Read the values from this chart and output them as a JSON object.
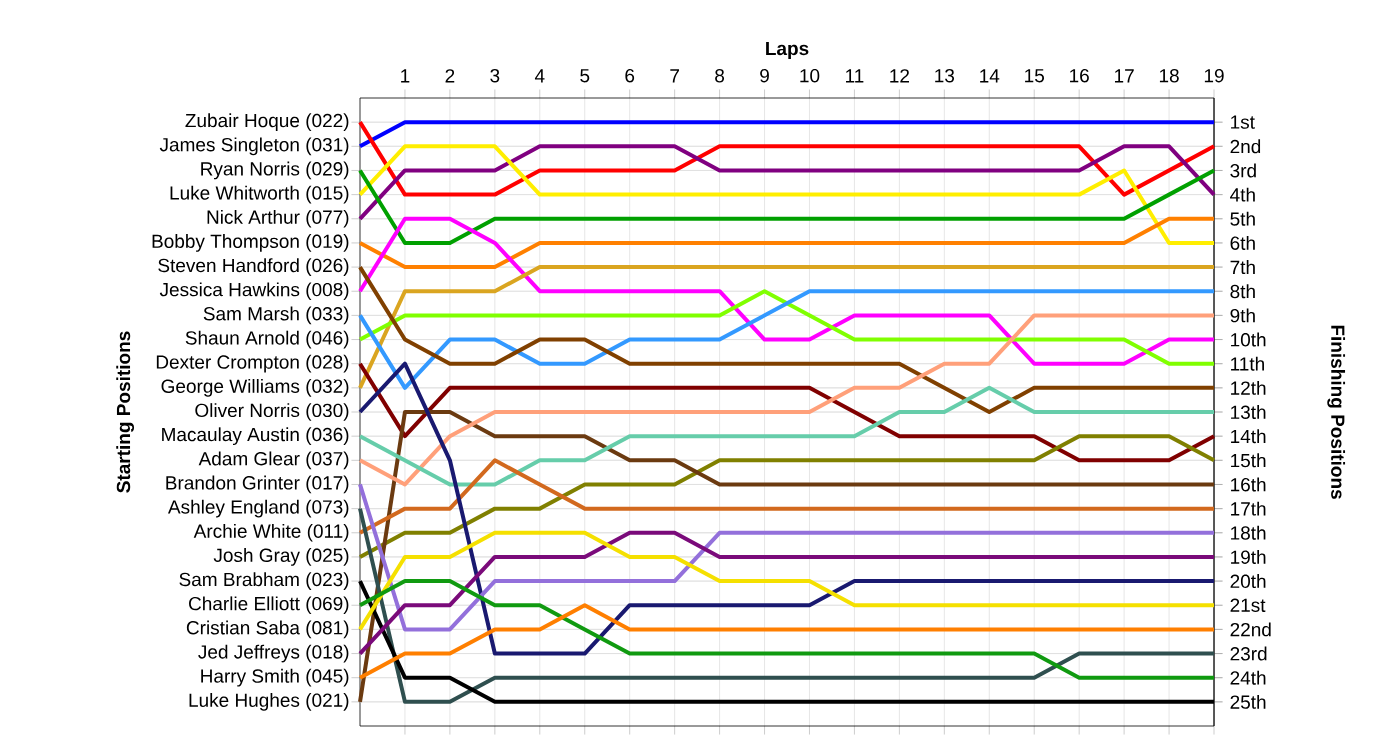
{
  "chart_data": {
    "type": "line",
    "xlabel": "Laps",
    "y2label": "Finishing Positions",
    "grid": true,
    "xlim": [
      0,
      19
    ],
    "xticks": [
      1,
      2,
      3,
      4,
      5,
      6,
      7,
      8,
      9,
      10,
      11,
      12,
      13,
      14,
      15,
      16,
      17,
      18,
      19
    ],
    "annotations": [
      "Starting Positions",
      "Zubair Hoque (022)",
      "James Singleton (031)",
      "Ryan Norris (029)",
      "Luke Whitworth (015)",
      "Nick Arthur (077)",
      "Bobby Thompson (019)",
      "Steven Handford (026)",
      "Jessica Hawkins (008)",
      "Sam Marsh (033)",
      "Shaun Arnold (046)",
      "Dexter Crompton (028)",
      "George Williams (032)",
      "Oliver Norris (030)",
      "Macaulay Austin (036)",
      "Adam Glear (037)",
      "Brandon Grinter (017)",
      "Ashley England (073)",
      "Archie White (011)",
      "Josh Gray (025)",
      "Sam Brabham (023)",
      "Charlie Elliott (069)",
      "Cristian Saba (081)",
      "Jed Jeffreys (018)",
      "Harry Smith (045)",
      "Luke Hughes (021)"
    ],
    "y2lim": [
      26,
      0
    ],
    "y2ticks": [
      {
        "value": 1,
        "label": "1st"
      },
      {
        "value": 2,
        "label": "2nd"
      },
      {
        "value": 3,
        "label": "3rd"
      },
      {
        "value": 4,
        "label": "4th"
      },
      {
        "value": 5,
        "label": "5th"
      },
      {
        "value": 6,
        "label": "6th"
      },
      {
        "value": 7,
        "label": "7th"
      },
      {
        "value": 8,
        "label": "8th"
      },
      {
        "value": 9,
        "label": "9th"
      },
      {
        "value": 10,
        "label": "10th"
      },
      {
        "value": 11,
        "label": "11th"
      },
      {
        "value": 12,
        "label": "12th"
      },
      {
        "value": 13,
        "label": "13th"
      },
      {
        "value": 14,
        "label": "14th"
      },
      {
        "value": 15,
        "label": "15th"
      },
      {
        "value": 16,
        "label": "16th"
      },
      {
        "value": 17,
        "label": "17th"
      },
      {
        "value": 18,
        "label": "18th"
      },
      {
        "value": 19,
        "label": "19th"
      },
      {
        "value": 20,
        "label": "20th"
      },
      {
        "value": 21,
        "label": "21st"
      },
      {
        "value": 22,
        "label": "22nd"
      },
      {
        "value": 23,
        "label": "23rd"
      },
      {
        "value": 24,
        "label": "24th"
      },
      {
        "value": 25,
        "label": "25th"
      }
    ],
    "x": [
      0,
      1,
      2,
      3,
      4,
      5,
      6,
      7,
      8,
      9,
      10,
      11,
      12,
      13,
      14,
      15,
      16,
      17,
      18,
      19
    ],
    "series": [
      {
        "axis": "y2",
        "color": "#0000ff",
        "values": [
          2,
          1,
          1,
          1,
          1,
          1,
          1,
          1,
          1,
          1,
          1,
          1,
          1,
          1,
          1,
          1,
          1,
          1,
          1,
          1
        ]
      },
      {
        "axis": "y2",
        "color": "#ff0000",
        "values": [
          1,
          4,
          4,
          4,
          3,
          3,
          3,
          3,
          2,
          2,
          2,
          2,
          2,
          2,
          2,
          2,
          2,
          4,
          3,
          2
        ]
      },
      {
        "axis": "y2",
        "color": "#800080",
        "values": [
          5,
          3,
          3,
          3,
          2,
          2,
          2,
          2,
          3,
          3,
          3,
          3,
          3,
          3,
          3,
          3,
          3,
          2,
          2,
          4
        ]
      },
      {
        "axis": "y2",
        "color": "#ffee00",
        "values": [
          4,
          2,
          2,
          2,
          4,
          4,
          4,
          4,
          4,
          4,
          4,
          4,
          4,
          4,
          4,
          4,
          4,
          3,
          6,
          6
        ]
      },
      {
        "axis": "y2",
        "color": "#00a000",
        "values": [
          3,
          6,
          6,
          5,
          5,
          5,
          5,
          5,
          5,
          5,
          5,
          5,
          5,
          5,
          5,
          5,
          5,
          5,
          4,
          3
        ]
      },
      {
        "axis": "y2",
        "color": "#ff8000",
        "values": [
          6,
          7,
          7,
          7,
          6,
          6,
          6,
          6,
          6,
          6,
          6,
          6,
          6,
          6,
          6,
          6,
          6,
          6,
          5,
          5
        ]
      },
      {
        "axis": "y2",
        "color": "#ff00ff",
        "values": [
          8,
          5,
          5,
          6,
          8,
          8,
          8,
          8,
          8,
          10,
          10,
          9,
          9,
          9,
          9,
          11,
          11,
          11,
          10,
          10
        ]
      },
      {
        "axis": "y2",
        "color": "#daa520",
        "values": [
          12,
          8,
          8,
          8,
          7,
          7,
          7,
          7,
          7,
          7,
          7,
          7,
          7,
          7,
          7,
          7,
          7,
          7,
          7,
          7
        ]
      },
      {
        "axis": "y2",
        "color": "#80ff00",
        "values": [
          10,
          9,
          9,
          9,
          9,
          9,
          9,
          9,
          9,
          8,
          9,
          10,
          10,
          10,
          10,
          10,
          10,
          10,
          11,
          11
        ]
      },
      {
        "axis": "y2",
        "color": "#3399ff",
        "values": [
          9,
          12,
          10,
          10,
          11,
          11,
          10,
          10,
          10,
          9,
          8,
          8,
          8,
          8,
          8,
          8,
          8,
          8,
          8,
          8
        ]
      },
      {
        "axis": "y2",
        "color": "#804000",
        "values": [
          7,
          10,
          11,
          11,
          10,
          10,
          11,
          11,
          11,
          11,
          11,
          11,
          11,
          12,
          13,
          12,
          12,
          12,
          12,
          12
        ]
      },
      {
        "axis": "y2",
        "color": "#800000",
        "values": [
          11,
          14,
          12,
          12,
          12,
          12,
          12,
          12,
          12,
          12,
          12,
          13,
          14,
          14,
          14,
          14,
          15,
          15,
          15,
          14
        ]
      },
      {
        "axis": "y2",
        "color": "#808000",
        "values": [
          19,
          18,
          18,
          17,
          17,
          16,
          16,
          16,
          15,
          15,
          15,
          15,
          15,
          15,
          15,
          15,
          14,
          14,
          14,
          15
        ]
      },
      {
        "axis": "y2",
        "color": "#6b3a10",
        "values": [
          25,
          13,
          13,
          14,
          14,
          14,
          15,
          15,
          16,
          16,
          16,
          16,
          16,
          16,
          16,
          16,
          16,
          16,
          16,
          16
        ]
      },
      {
        "axis": "y2",
        "color": "#ffa07a",
        "values": [
          15,
          16,
          14,
          13,
          13,
          13,
          13,
          13,
          13,
          13,
          13,
          12,
          12,
          11,
          11,
          9,
          9,
          9,
          9,
          9
        ]
      },
      {
        "axis": "y2",
        "color": "#66cdaa",
        "values": [
          14,
          15,
          16,
          16,
          15,
          15,
          14,
          14,
          14,
          14,
          14,
          14,
          13,
          13,
          12,
          13,
          13,
          13,
          13,
          13
        ]
      },
      {
        "axis": "y2",
        "color": "#d2691e",
        "values": [
          18,
          17,
          17,
          15,
          16,
          17,
          17,
          17,
          17,
          17,
          17,
          17,
          17,
          17,
          17,
          17,
          17,
          17,
          17,
          17
        ]
      },
      {
        "axis": "y2",
        "color": "#2f4f4f",
        "values": [
          17,
          25,
          25,
          24,
          24,
          24,
          24,
          24,
          24,
          24,
          24,
          24,
          24,
          24,
          24,
          24,
          23,
          23,
          23,
          23
        ]
      },
      {
        "axis": "y2",
        "color": "#000000",
        "values": [
          20,
          24,
          24,
          25,
          25,
          25,
          25,
          25,
          25,
          25,
          25,
          25,
          25,
          25,
          25,
          25,
          25,
          25,
          25,
          25
        ]
      },
      {
        "axis": "y2",
        "color": "#191970",
        "values": [
          13,
          11,
          15,
          23,
          23,
          23,
          21,
          21,
          21,
          21,
          21,
          20,
          20,
          20,
          20,
          20,
          20,
          20,
          20,
          20
        ]
      },
      {
        "axis": "y2",
        "color": "#9370db",
        "values": [
          16,
          22,
          22,
          20,
          20,
          20,
          20,
          20,
          18,
          18,
          18,
          18,
          18,
          18,
          18,
          18,
          18,
          18,
          18,
          18
        ]
      },
      {
        "axis": "y2",
        "color": "#7a0a7a",
        "values": [
          23,
          21,
          21,
          19,
          19,
          19,
          18,
          18,
          19,
          19,
          19,
          19,
          19,
          19,
          19,
          19,
          19,
          19,
          19,
          19
        ]
      },
      {
        "axis": "y2",
        "color": "#f5e000",
        "values": [
          22,
          19,
          19,
          18,
          18,
          18,
          19,
          19,
          20,
          20,
          20,
          21,
          21,
          21,
          21,
          21,
          21,
          21,
          21,
          21
        ]
      },
      {
        "axis": "y2",
        "color": "#109a10",
        "values": [
          21,
          20,
          20,
          21,
          21,
          22,
          23,
          23,
          23,
          23,
          23,
          23,
          23,
          23,
          23,
          23,
          24,
          24,
          24,
          24
        ]
      },
      {
        "axis": "y2",
        "color": "#ff7f00",
        "values": [
          24,
          23,
          23,
          22,
          22,
          21,
          22,
          22,
          22,
          22,
          22,
          22,
          22,
          22,
          22,
          22,
          22,
          22,
          22,
          22
        ]
      }
    ]
  }
}
